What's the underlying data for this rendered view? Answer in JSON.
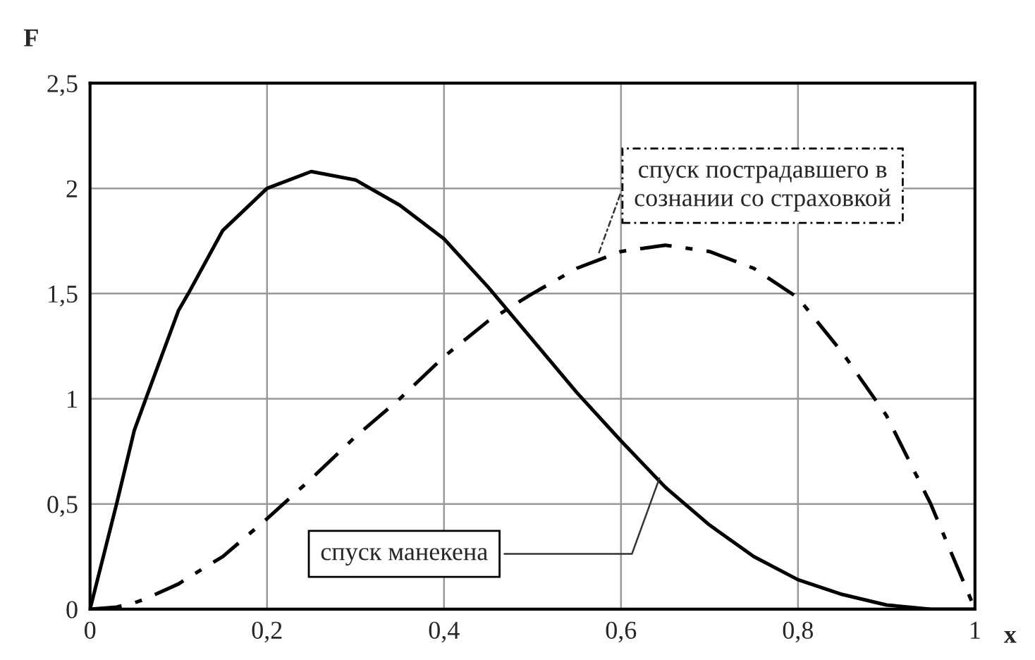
{
  "chart_data": {
    "type": "line",
    "xlabel": "x",
    "ylabel": "F",
    "x": [
      0,
      0.03,
      0.05,
      0.063,
      0.1,
      0.111,
      0.15,
      0.2,
      0.25,
      0.3,
      0.35,
      0.4,
      0.45,
      0.5,
      0.55,
      0.6,
      0.65,
      0.7,
      0.75,
      0.8,
      0.85,
      0.9,
      0.95,
      1
    ],
    "series": [
      {
        "color": "#000000",
        "line_style": "solid",
        "values": [
          0,
          0.5,
          0.85,
          1.0,
          1.42,
          1.5,
          1.8,
          2.0,
          2.08,
          2.04,
          1.92,
          1.76,
          1.53,
          1.28,
          1.03,
          0.8,
          0.58,
          0.4,
          0.25,
          0.14,
          0.07,
          0.02,
          0.0,
          0
        ]
      },
      {
        "color": "#000000",
        "line_style": "dashdot",
        "values": [
          0,
          0.01,
          0.03,
          0.05,
          0.12,
          0.15,
          0.25,
          0.43,
          0.62,
          0.82,
          1.0,
          1.2,
          1.37,
          1.5,
          1.62,
          1.7,
          1.73,
          1.7,
          1.62,
          1.48,
          1.22,
          0.92,
          0.5,
          0
        ]
      }
    ],
    "annotations": [
      {
        "text": "спуск манекена",
        "x": 0.645,
        "y": 0.64
      },
      {
        "text": "спуск пострадавшего в\nсознании со страховкой",
        "x": 0.573,
        "y": 1.67
      }
    ],
    "xlim": [
      0,
      1
    ],
    "ylim": [
      0,
      2.5
    ],
    "xticks": [
      0,
      {
        "value": 0.2,
        "label": "0,2"
      },
      {
        "value": 0.4,
        "label": "0,4"
      },
      {
        "value": 0.6,
        "label": "0,6"
      },
      {
        "value": 0.8,
        "label": "0,8"
      },
      1
    ],
    "yticks": [
      0,
      {
        "value": 0.5,
        "label": "0,5"
      },
      1,
      {
        "value": 1.5,
        "label": "1,5"
      },
      2,
      {
        "value": 2.5,
        "label": "2,5"
      }
    ],
    "grid": true,
    "legend": false,
    "marker": "none"
  }
}
